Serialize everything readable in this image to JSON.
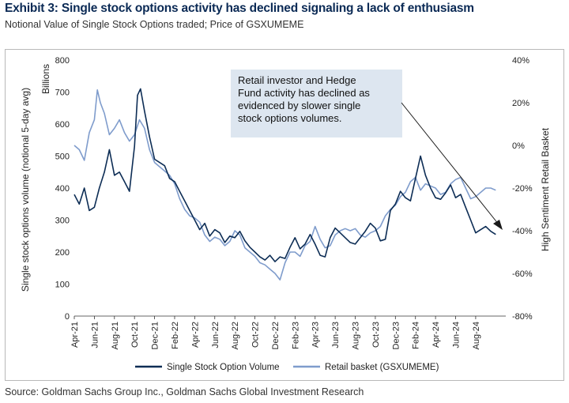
{
  "header": {
    "title": "Exhibit 3: Single stock options activity has declined signaling a lack of enthusiasm",
    "subtitle": "Notional Value of Single Stock Options traded; Price of GSXUMEME"
  },
  "footer": {
    "source": "Source: Goldman Sachs Group Inc., Goldman Sachs Global Investment Research"
  },
  "colors": {
    "volume": "#0d2d55",
    "retail": "#7f9ccc",
    "annotation_bg": "#dde6f0",
    "arrow": "#1a1a1a"
  },
  "chart_data": {
    "type": "line",
    "title": "Exhibit 3: Single stock options activity has declined signaling a lack of enthusiasm",
    "ylabel_left": "Single stock options volume  (notional 5-day avg)",
    "ylabel_left_unit": "Billions",
    "ylabel_right": "High Sentiment Retail Basket",
    "ylim_left": [
      0,
      800
    ],
    "yticks_left": [
      "0",
      "100",
      "200",
      "300",
      "400",
      "500",
      "600",
      "700",
      "800"
    ],
    "ylim_right": [
      -80,
      40
    ],
    "yticks_right": [
      "-80%",
      "-60%",
      "-40%",
      "-20%",
      "0%",
      "20%",
      "40%"
    ],
    "xlim_months": [
      0,
      43
    ],
    "x_ticks": [
      {
        "label": "Apr-21",
        "m": 0
      },
      {
        "label": "Jun-21",
        "m": 2
      },
      {
        "label": "Aug-21",
        "m": 4
      },
      {
        "label": "Oct-21",
        "m": 6
      },
      {
        "label": "Dec-21",
        "m": 8
      },
      {
        "label": "Feb-22",
        "m": 10
      },
      {
        "label": "Apr-22",
        "m": 12
      },
      {
        "label": "Jun-22",
        "m": 14
      },
      {
        "label": "Aug-22",
        "m": 16
      },
      {
        "label": "Oct-22",
        "m": 18
      },
      {
        "label": "Dec-22",
        "m": 20
      },
      {
        "label": "Feb-23",
        "m": 22
      },
      {
        "label": "Apr-23",
        "m": 24
      },
      {
        "label": "Jun-23",
        "m": 26
      },
      {
        "label": "Aug-23",
        "m": 28
      },
      {
        "label": "Oct-23",
        "m": 30
      },
      {
        "label": "Dec-23",
        "m": 32
      },
      {
        "label": "Feb-24",
        "m": 34
      },
      {
        "label": "Apr-24",
        "m": 36
      },
      {
        "label": "Jun-24",
        "m": 38
      },
      {
        "label": "Aug-24",
        "m": 40
      }
    ],
    "annotation": "Retail investor and Hedge Fund activity has declined as evidenced by slower single stock options volumes.",
    "annotation_lines": [
      "Retail investor and Hedge",
      "Fund activity has declined as",
      "evidenced by slower single",
      "stock options volumes."
    ],
    "legend": {
      "volume": "Single Stock Option Volume",
      "retail": "Retail basket (GSXUMEME)"
    },
    "series": [
      {
        "name": "Single Stock Option Volume",
        "axis": "left",
        "x": [
          0,
          0.5,
          1,
          1.5,
          2,
          2.5,
          3,
          3.5,
          4,
          4.5,
          5,
          5.5,
          6,
          6.3,
          6.6,
          7,
          7.5,
          8,
          8.5,
          9,
          9.5,
          10,
          10.5,
          11,
          11.5,
          12,
          12.5,
          13,
          13.5,
          14,
          14.5,
          15,
          15.5,
          16,
          16.5,
          17,
          17.5,
          18,
          18.5,
          19,
          19.5,
          20,
          20.5,
          21,
          21.5,
          22,
          22.5,
          23,
          23.5,
          24,
          24.5,
          25,
          25.5,
          26,
          26.5,
          27,
          27.5,
          28,
          28.5,
          29,
          29.5,
          30,
          30.5,
          31,
          31.5,
          32,
          32.5,
          33,
          33.5,
          34,
          34.5,
          35,
          35.5,
          36,
          36.5,
          37,
          37.5,
          38,
          38.5,
          39,
          39.5,
          40,
          40.5,
          41,
          41.5,
          42
        ],
        "values": [
          380,
          350,
          400,
          330,
          340,
          400,
          450,
          520,
          440,
          450,
          420,
          390,
          530,
          690,
          710,
          640,
          560,
          490,
          480,
          470,
          430,
          420,
          390,
          360,
          330,
          300,
          270,
          290,
          250,
          270,
          260,
          230,
          250,
          245,
          265,
          235,
          215,
          200,
          185,
          175,
          190,
          170,
          185,
          180,
          215,
          245,
          210,
          225,
          255,
          225,
          190,
          185,
          245,
          275,
          260,
          245,
          230,
          225,
          245,
          265,
          290,
          275,
          235,
          240,
          330,
          350,
          390,
          370,
          360,
          430,
          500,
          440,
          400,
          370,
          365,
          385,
          410,
          370,
          380,
          340,
          300,
          260,
          270,
          280,
          265,
          255
        ]
      },
      {
        "name": "Retail basket (GSXUMEME)",
        "axis": "right",
        "x": [
          0,
          0.5,
          1,
          1.5,
          2,
          2.3,
          2.6,
          3,
          3.5,
          4,
          4.5,
          5,
          5.5,
          6,
          6.5,
          7,
          7.5,
          8,
          8.5,
          9,
          9.5,
          10,
          10.5,
          11,
          11.5,
          12,
          12.5,
          13,
          13.5,
          14,
          14.5,
          15,
          15.5,
          16,
          16.5,
          17,
          17.5,
          18,
          18.5,
          19,
          19.5,
          20,
          20.5,
          21,
          21.5,
          22,
          22.5,
          23,
          23.5,
          24,
          24.5,
          25,
          25.5,
          26,
          26.5,
          27,
          27.5,
          28,
          28.5,
          29,
          29.5,
          30,
          30.5,
          31,
          31.5,
          32,
          32.5,
          33,
          33.5,
          34,
          34.5,
          35,
          35.5,
          36,
          36.5,
          37,
          37.5,
          38,
          38.5,
          39,
          39.5,
          40,
          40.5,
          41,
          41.5,
          42
        ],
        "values": [
          0,
          -2,
          -7,
          6,
          12,
          26,
          20,
          15,
          5,
          8,
          12,
          6,
          2,
          5,
          12,
          8,
          -2,
          -8,
          -10,
          -12,
          -14,
          -18,
          -25,
          -30,
          -33,
          -34,
          -36,
          -42,
          -45,
          -43,
          -44,
          -47,
          -45,
          -40,
          -42,
          -48,
          -50,
          -52,
          -55,
          -56,
          -58,
          -60,
          -63,
          -55,
          -50,
          -50,
          -52,
          -47,
          -45,
          -38,
          -44,
          -48,
          -47,
          -42,
          -40,
          -39,
          -40,
          -39,
          -42,
          -43,
          -41,
          -40,
          -38,
          -33,
          -30,
          -28,
          -24,
          -22,
          -17,
          -15,
          -21,
          -18,
          -19,
          -20,
          -23,
          -22,
          -18,
          -16,
          -15,
          -20,
          -25,
          -24,
          -22,
          -20,
          -20,
          -21
        ]
      }
    ]
  }
}
